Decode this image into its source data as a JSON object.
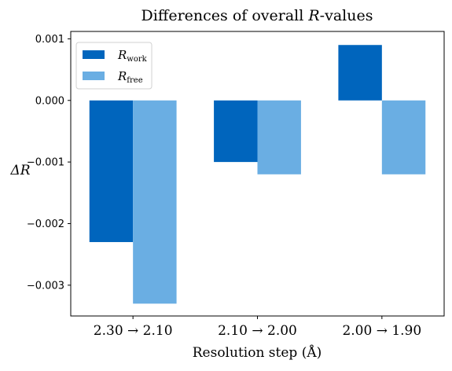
{
  "chart_data": {
    "type": "bar",
    "title": "Differences of overall R-values",
    "title_parts": {
      "pre": "Differences of overall ",
      "var": "R",
      "post": "-values"
    },
    "xlabel": "Resolution step (Å)",
    "ylabel": "ΔR",
    "categories": [
      "2.30 → 2.10",
      "2.10 → 2.00",
      "2.00 → 1.90"
    ],
    "ylim": [
      -0.0035,
      0.00112
    ],
    "yticks": [
      0.001,
      0.0,
      -0.001,
      -0.002,
      -0.003
    ],
    "ytick_labels": [
      "0.001",
      "0.000",
      "−0.001",
      "−0.002",
      "−0.003"
    ],
    "grid": false,
    "legend_position": "top-left",
    "series": [
      {
        "name": "R_work",
        "name_base": "R",
        "name_sub": "work",
        "color": "#0065bd",
        "values": [
          -0.0023,
          -0.001,
          0.0009
        ]
      },
      {
        "name": "R_free",
        "name_base": "R",
        "name_sub": "free",
        "color": "#6aaee3",
        "values": [
          -0.0033,
          -0.0012,
          -0.0012
        ]
      }
    ]
  }
}
